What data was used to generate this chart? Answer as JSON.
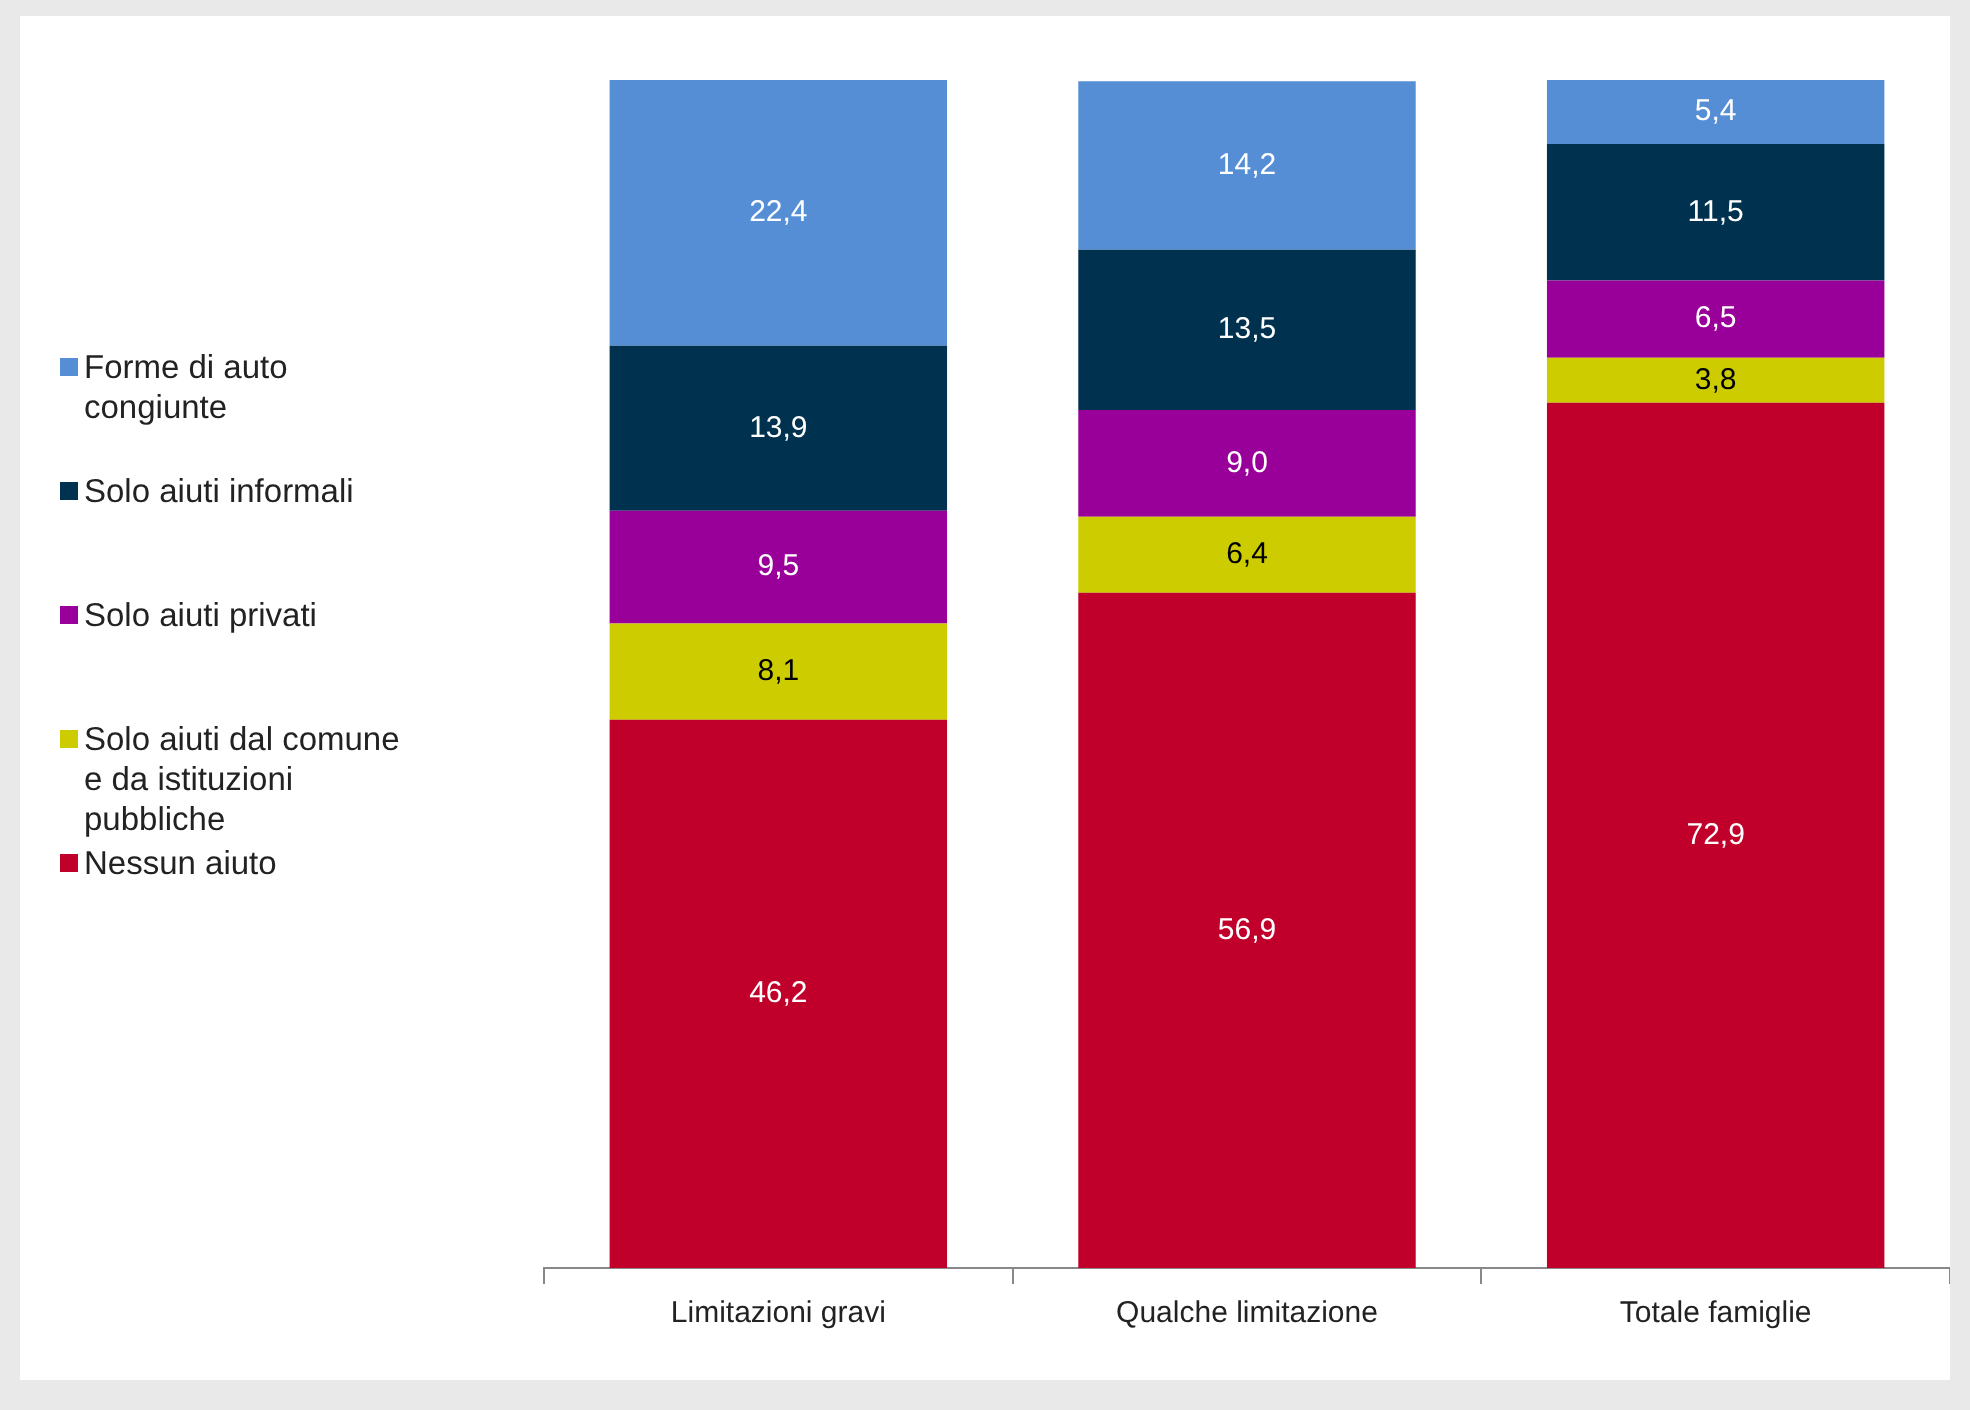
{
  "chart_data": {
    "type": "bar",
    "stacked": true,
    "legend": "left",
    "categories": [
      "Limitazioni gravi",
      "Qualche limitazione",
      "Totale famiglie"
    ],
    "series": [
      {
        "name": "Nessun aiuto",
        "color": "#c0002a",
        "values": [
          46.2,
          56.9,
          72.9
        ],
        "value_labels": [
          "46,2",
          "56,9",
          "72,9"
        ]
      },
      {
        "name": "Solo aiuti dal comune e da istituzioni pubbliche",
        "color": "#cccc00",
        "values": [
          8.1,
          6.4,
          3.8
        ],
        "value_labels": [
          "8,1",
          "6,4",
          "3,8"
        ]
      },
      {
        "name": "Solo aiuti privati",
        "color": "#990099",
        "values": [
          9.5,
          9.0,
          6.5
        ],
        "value_labels": [
          "9,5",
          "9,0",
          "6,5"
        ]
      },
      {
        "name": "Solo aiuti informali",
        "color": "#00314f",
        "values": [
          13.9,
          13.5,
          11.5
        ],
        "value_labels": [
          "13,9",
          "13,5",
          "11,5"
        ]
      },
      {
        "name": "Forme di auto congiunte",
        "color": "#558ed5",
        "values": [
          22.4,
          14.2,
          5.4
        ],
        "value_labels": [
          "22,4",
          "14,2",
          "5,4"
        ]
      }
    ]
  }
}
